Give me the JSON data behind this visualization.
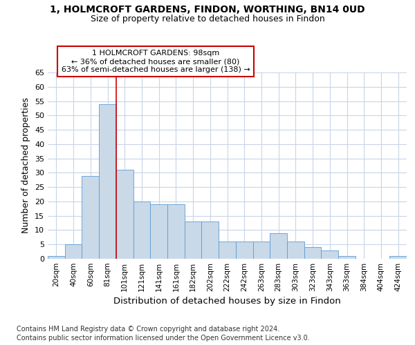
{
  "title1": "1, HOLMCROFT GARDENS, FINDON, WORTHING, BN14 0UD",
  "title2": "Size of property relative to detached houses in Findon",
  "xlabel": "Distribution of detached houses by size in Findon",
  "ylabel": "Number of detached properties",
  "bar_labels": [
    "20sqm",
    "40sqm",
    "60sqm",
    "81sqm",
    "101sqm",
    "121sqm",
    "141sqm",
    "161sqm",
    "182sqm",
    "202sqm",
    "222sqm",
    "242sqm",
    "263sqm",
    "283sqm",
    "303sqm",
    "323sqm",
    "343sqm",
    "363sqm",
    "384sqm",
    "404sqm",
    "424sqm"
  ],
  "bar_values": [
    1,
    5,
    29,
    54,
    31,
    20,
    19,
    19,
    13,
    13,
    6,
    6,
    6,
    9,
    6,
    4,
    3,
    1,
    0,
    0,
    1
  ],
  "bar_color": "#c9d9e8",
  "bar_edge_color": "#5b9bd5",
  "highlight_bar_index": 3,
  "highlight_line_color": "#cc0000",
  "annotation_text_line1": "1 HOLMCROFT GARDENS: 98sqm",
  "annotation_text_line2": "← 36% of detached houses are smaller (80)",
  "annotation_text_line3": "63% of semi-detached houses are larger (138) →",
  "ylim": [
    0,
    65
  ],
  "yticks": [
    0,
    5,
    10,
    15,
    20,
    25,
    30,
    35,
    40,
    45,
    50,
    55,
    60,
    65
  ],
  "footer_line1": "Contains HM Land Registry data © Crown copyright and database right 2024.",
  "footer_line2": "Contains public sector information licensed under the Open Government Licence v3.0.",
  "background_color": "#ffffff",
  "grid_color": "#c8d4e8"
}
